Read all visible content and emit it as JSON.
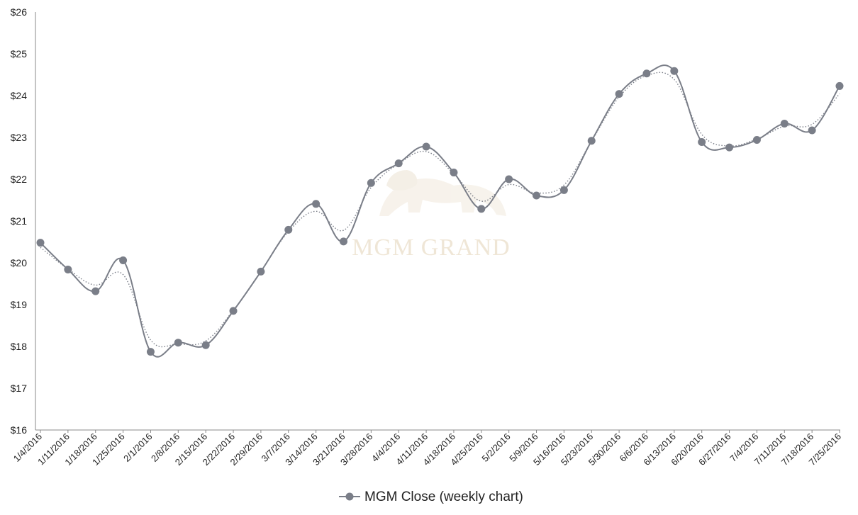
{
  "chart_data": {
    "type": "line",
    "title": "",
    "xlabel": "",
    "ylabel": "",
    "ylim": [
      16,
      26
    ],
    "yticks": [
      16,
      17,
      18,
      19,
      20,
      21,
      22,
      23,
      24,
      25,
      26
    ],
    "ytick_labels": [
      "$16",
      "$17",
      "$18",
      "$19",
      "$20",
      "$21",
      "$22",
      "$23",
      "$24",
      "$25",
      "$26"
    ],
    "x": [
      "1/4/2016",
      "1/11/2016",
      "1/18/2016",
      "1/25/2016",
      "2/1/2016",
      "2/8/2016",
      "2/15/2016",
      "2/22/2016",
      "2/29/2016",
      "3/7/2016",
      "3/14/2016",
      "3/21/2016",
      "3/28/2016",
      "4/4/2016",
      "4/11/2016",
      "4/18/2016",
      "4/25/2016",
      "5/2/2016",
      "5/9/2016",
      "5/16/2016",
      "5/23/2016",
      "5/30/2016",
      "6/6/2016",
      "6/13/2016",
      "6/20/2016",
      "6/27/2016",
      "7/4/2016",
      "7/11/2016",
      "7/18/2016",
      "7/25/2016"
    ],
    "series": [
      {
        "name": "MGM Close (weekly chart)",
        "values": [
          20.48,
          19.84,
          19.32,
          20.06,
          17.87,
          18.09,
          18.03,
          18.85,
          19.79,
          20.79,
          21.41,
          20.51,
          21.91,
          22.38,
          22.78,
          22.16,
          21.29,
          22.0,
          21.61,
          21.74,
          22.92,
          24.04,
          24.53,
          24.59,
          22.89,
          22.76,
          22.94,
          23.33,
          23.17,
          24.23
        ],
        "color": "#7a7e88",
        "marker": "circle"
      }
    ],
    "trendline": {
      "style": "dotted",
      "color": "#7a7e88"
    },
    "legend": {
      "position": "bottom",
      "label": "MGM Close (weekly chart)"
    },
    "grid": false
  },
  "watermark": {
    "kind": "logo",
    "text": "MGM GRAND",
    "icon": "lion-icon",
    "color": "#efe6d6"
  }
}
